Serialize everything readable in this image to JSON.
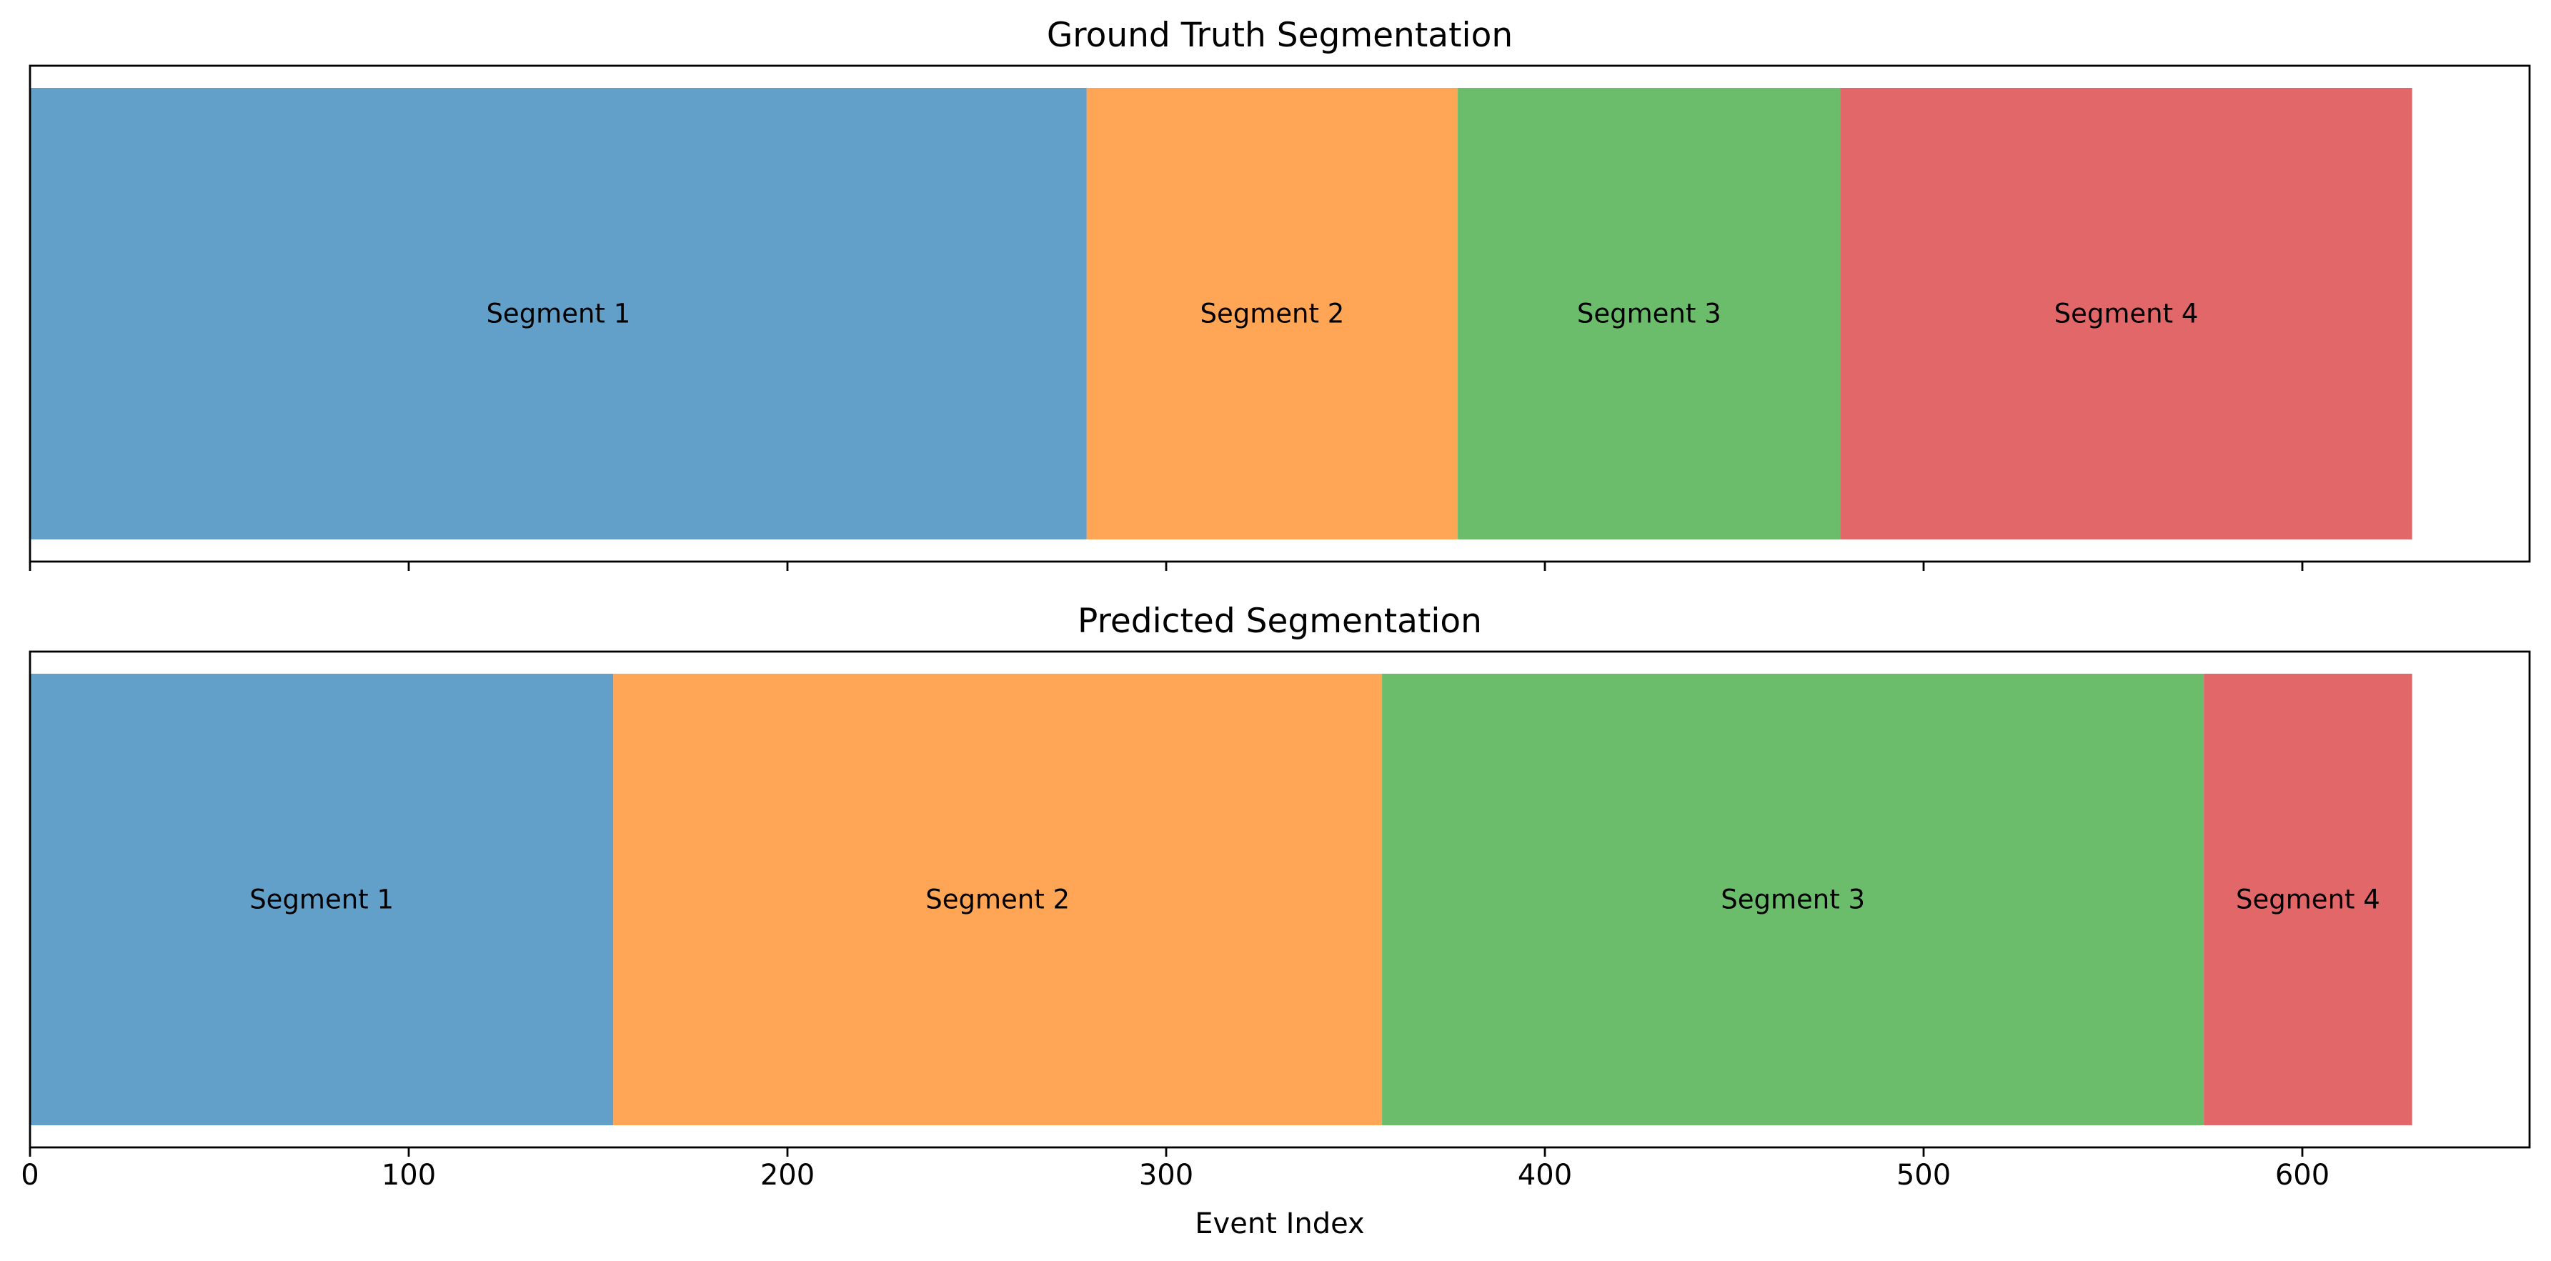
{
  "chart_data": [
    {
      "type": "bar",
      "orientation": "horizontal-segments",
      "title": "Ground Truth Segmentation",
      "xlabel": "",
      "ylabel": "",
      "xlim": [
        0,
        660
      ],
      "grid": false,
      "ticks": [
        0,
        100,
        200,
        300,
        400,
        500,
        600
      ],
      "show_tick_labels": false,
      "segments": [
        {
          "label": "Segment 1",
          "start": 0,
          "end": 279,
          "color": "#1f77b4"
        },
        {
          "label": "Segment 2",
          "start": 279,
          "end": 377,
          "color": "#ff7f0e"
        },
        {
          "label": "Segment 3",
          "start": 377,
          "end": 478,
          "color": "#2ca02c"
        },
        {
          "label": "Segment 4",
          "start": 478,
          "end": 629,
          "color": "#d62728"
        }
      ]
    },
    {
      "type": "bar",
      "orientation": "horizontal-segments",
      "title": "Predicted Segmentation",
      "xlabel": "Event Index",
      "ylabel": "",
      "xlim": [
        0,
        660
      ],
      "grid": false,
      "ticks": [
        0,
        100,
        200,
        300,
        400,
        500,
        600
      ],
      "show_tick_labels": true,
      "segments": [
        {
          "label": "Segment 1",
          "start": 0,
          "end": 154,
          "color": "#1f77b4"
        },
        {
          "label": "Segment 2",
          "start": 154,
          "end": 357,
          "color": "#ff7f0e"
        },
        {
          "label": "Segment 3",
          "start": 357,
          "end": 574,
          "color": "#2ca02c"
        },
        {
          "label": "Segment 4",
          "start": 574,
          "end": 629,
          "color": "#d62728"
        }
      ]
    }
  ]
}
